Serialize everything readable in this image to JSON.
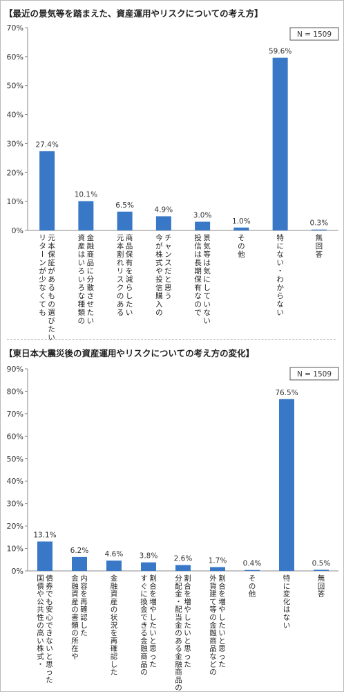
{
  "chart_data": [
    {
      "type": "bar",
      "title": "【最近の景気等を踏まえた、資産運用やリスクについての考え方】",
      "n_label": "N = 1509",
      "ylim": [
        0,
        70
      ],
      "yticks": [
        0,
        10,
        20,
        30,
        40,
        50,
        60,
        70
      ],
      "tick_suffix": "%",
      "bar_color": "#3878c7",
      "grid": false,
      "categories": [
        [
          "元本保証があるもの選びたい",
          "リターンが少なくても"
        ],
        [
          "金融商品に分散させたい",
          "資産はいろいろな種類の"
        ],
        [
          "商品保有を減らしたい",
          "元本割れリスクのある"
        ],
        [
          "チャンスだと思う",
          "今が株式や投信購入の"
        ],
        [
          "景気等は気にしていない",
          "投信は長期保有なので"
        ],
        [
          "その他"
        ],
        [
          "特にない・わからない"
        ],
        [
          "無回答"
        ]
      ],
      "values": [
        27.4,
        10.1,
        6.5,
        4.9,
        3.0,
        1.0,
        59.6,
        0.3
      ],
      "value_labels": [
        "27.4%",
        "10.1%",
        "6.5%",
        "4.9%",
        "3.0%",
        "1.0%",
        "59.6%",
        "0.3%"
      ]
    },
    {
      "type": "bar",
      "title": "【東日本大震災後の資産運用やリスクについての考え方の変化】",
      "n_label": "N = 1509",
      "ylim": [
        0,
        90
      ],
      "yticks": [
        0,
        10,
        20,
        30,
        40,
        50,
        60,
        70,
        80,
        90
      ],
      "tick_suffix": "%",
      "bar_color": "#3878c7",
      "grid": false,
      "categories": [
        [
          "債券でも安心できないと思った",
          "国債や公共性の高い株式・"
        ],
        [
          "内容を再確認した",
          "金融資産の書類の所在や"
        ],
        [
          "金融資産の状況を再確認した"
        ],
        [
          "割合を増やしたいと思った",
          "すぐに換金できる金融商品の"
        ],
        [
          "割合を増やしたいと思った",
          "分配金・配当金のある金融商品の"
        ],
        [
          "割合を増やしたいと思った",
          "外貨建て等の金融商品などの"
        ],
        [
          "その他"
        ],
        [
          "特に変化はない"
        ],
        [
          "無回答"
        ]
      ],
      "values": [
        13.1,
        6.2,
        4.6,
        3.8,
        2.6,
        1.7,
        0.4,
        76.5,
        0.5
      ],
      "value_labels": [
        "13.1%",
        "6.2%",
        "4.6%",
        "3.8%",
        "2.6%",
        "1.7%",
        "0.4%",
        "76.5%",
        "0.5%"
      ]
    }
  ]
}
